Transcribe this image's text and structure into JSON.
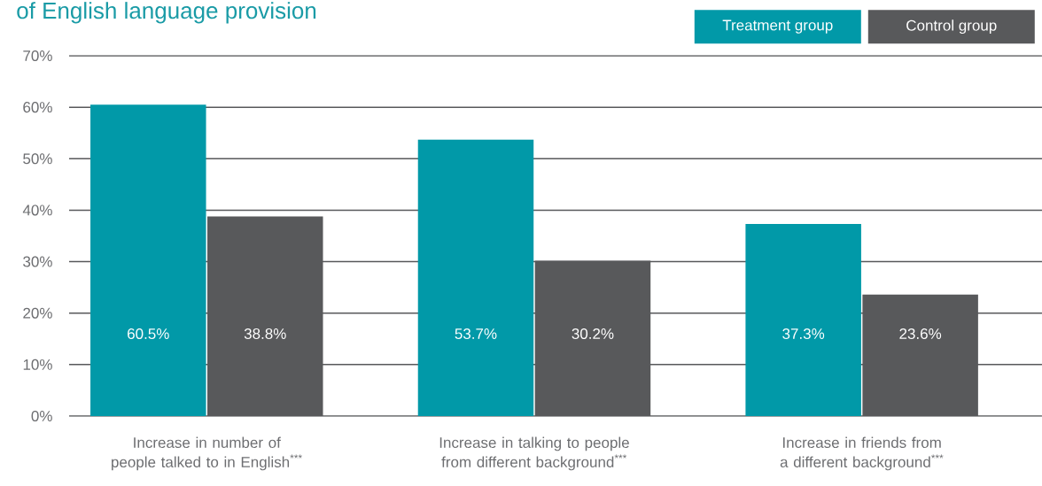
{
  "chart_data": {
    "type": "bar",
    "title": "of English language provision",
    "categories": [
      "Increase in number of people talked to in English$^{***}$",
      "Increase in talking to people from different background$^{***}$",
      "Increase in friends from a different background$^{***}$"
    ],
    "series": [
      {
        "name": "Treatment group",
        "color": "#0199a8",
        "values": [
          60.5,
          53.7,
          37.3
        ],
        "value_labels": [
          "60.5%",
          "53.7%",
          "37.3%"
        ]
      },
      {
        "name": "Control group",
        "color": "#58595b",
        "values": [
          38.8,
          30.2,
          23.6
        ],
        "value_labels": [
          "38.8%",
          "30.2%",
          "23.6%"
        ]
      }
    ],
    "ylim": [
      0,
      70
    ],
    "yticks": [
      {
        "value": 0,
        "label": "0%"
      },
      {
        "value": 10,
        "label": "10%"
      },
      {
        "value": 20,
        "label": "20%"
      },
      {
        "value": 30,
        "label": "30%"
      },
      {
        "value": 40,
        "label": "40%"
      },
      {
        "value": 50,
        "label": "50%"
      },
      {
        "value": 60,
        "label": "60%"
      },
      {
        "value": 70,
        "label": "70%"
      }
    ],
    "grid": "y",
    "legend": "top right"
  }
}
